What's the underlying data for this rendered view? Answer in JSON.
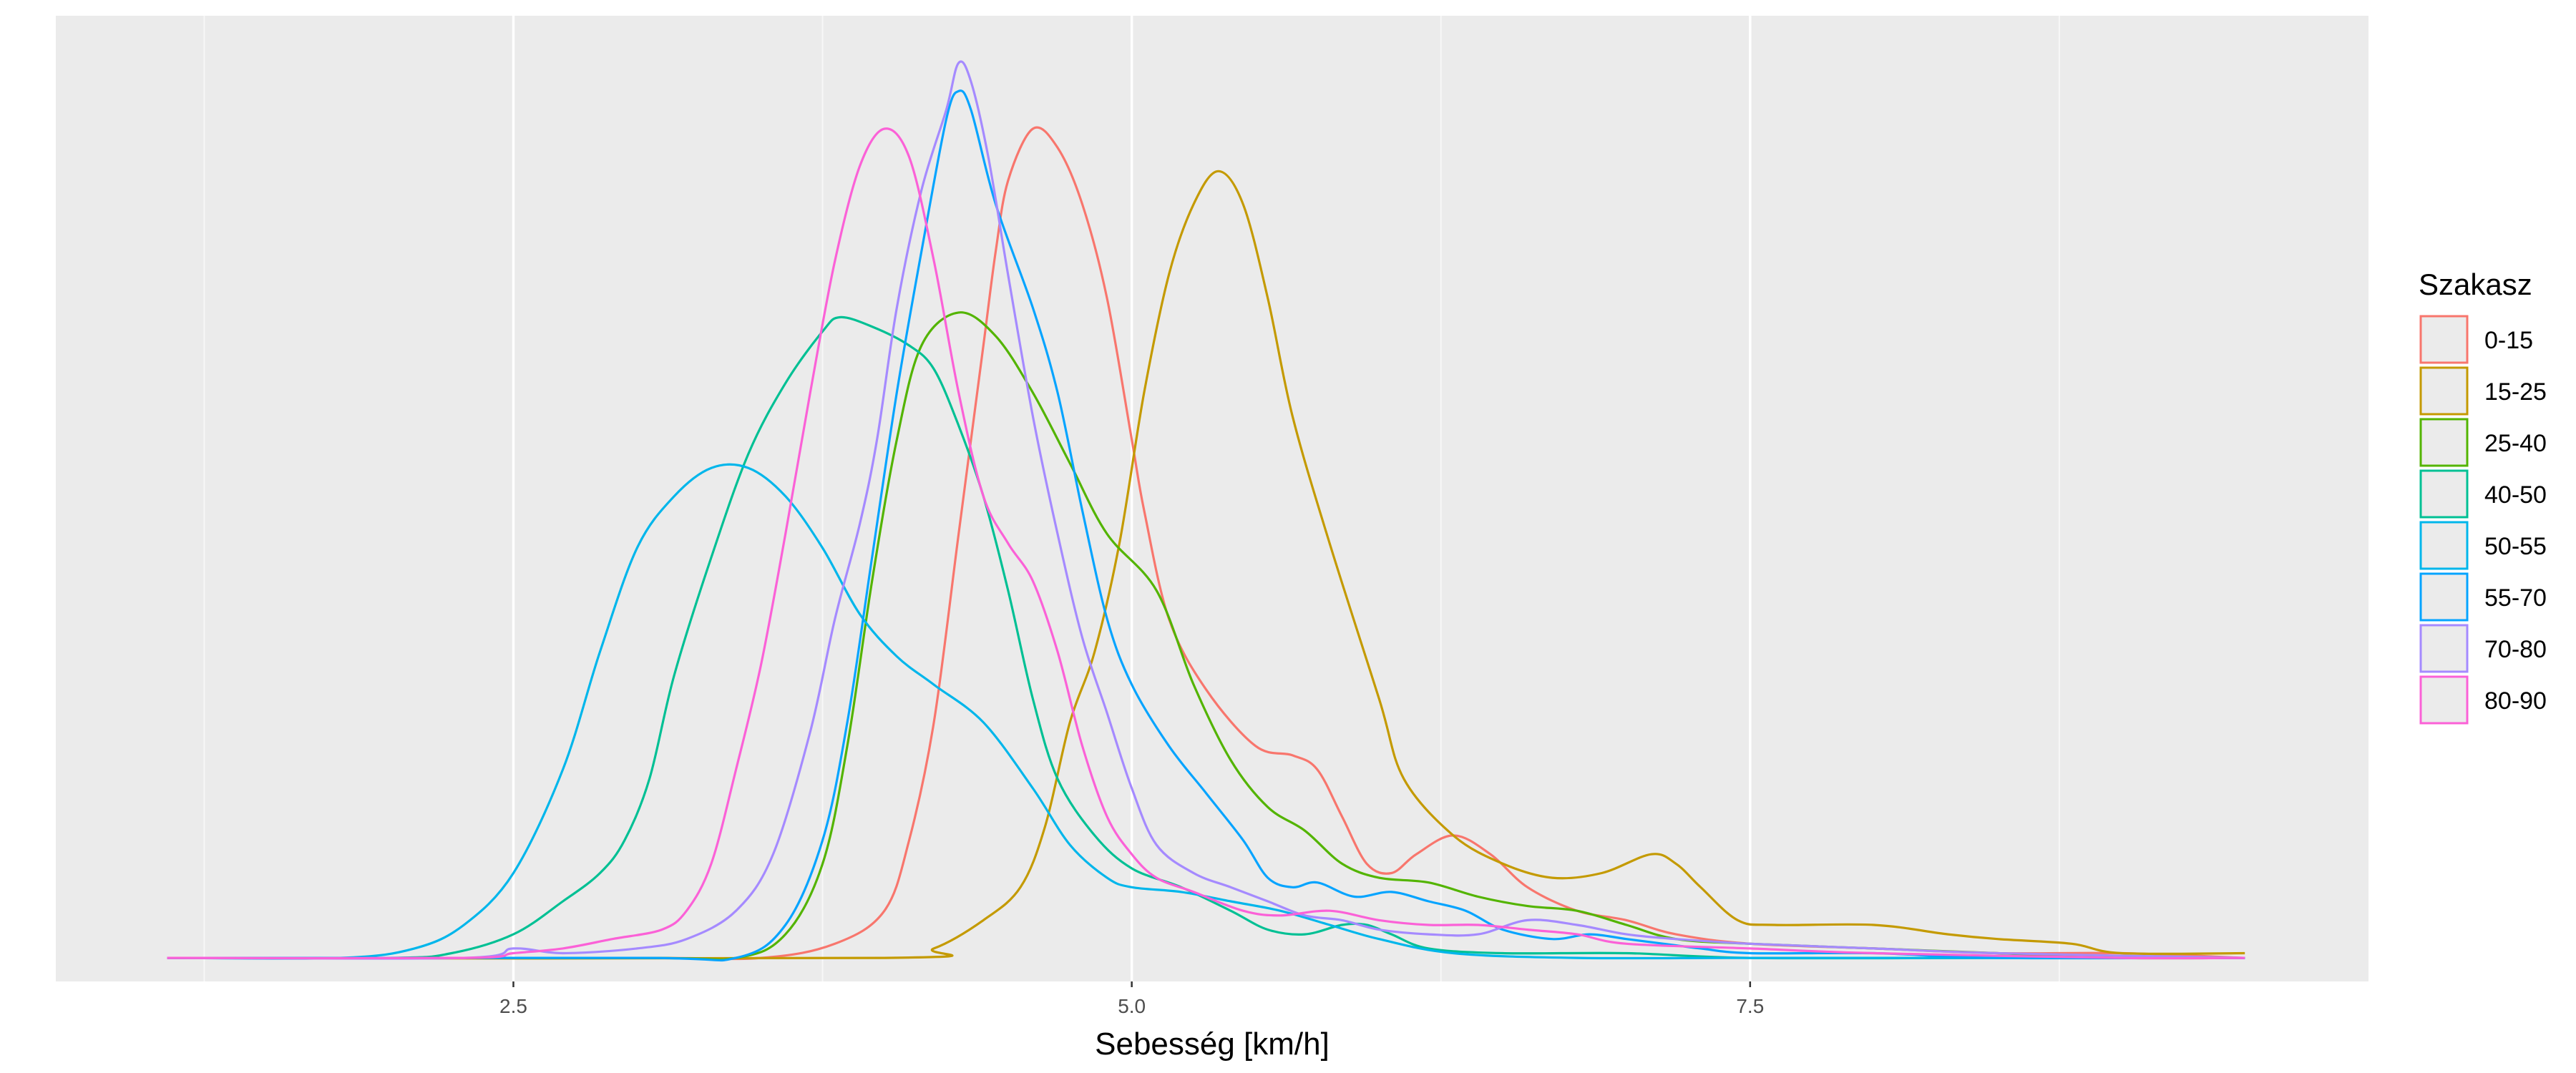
{
  "chart_data": {
    "type": "line",
    "title": "",
    "xlabel": "Sebesség [km/h]",
    "ylabel": "",
    "xlim": [
      0.65,
      10.0
    ],
    "ylim": [
      -0.05,
      2.0
    ],
    "x_ticks": [
      2.5,
      5.0,
      7.5
    ],
    "x_tick_labels": [
      "2.5",
      "5.0",
      "7.5"
    ],
    "x_minor_gridlines": [
      1.25,
      3.75,
      6.25,
      8.75
    ],
    "y_ticks_shown": false,
    "grid": true,
    "legend": {
      "title": "Szakasz",
      "position": "right"
    },
    "series": [
      {
        "name": "0-15",
        "color": "#F8766D",
        "points": [
          [
            1.1,
            0.0
          ],
          [
            3.0,
            0.0
          ],
          [
            3.5,
            0.0
          ],
          [
            3.8,
            0.03
          ],
          [
            4.0,
            0.1
          ],
          [
            4.1,
            0.25
          ],
          [
            4.2,
            0.5
          ],
          [
            4.3,
            0.9
          ],
          [
            4.4,
            1.3
          ],
          [
            4.45,
            1.5
          ],
          [
            4.5,
            1.65
          ],
          [
            4.6,
            1.76
          ],
          [
            4.7,
            1.72
          ],
          [
            4.8,
            1.6
          ],
          [
            4.9,
            1.4
          ],
          [
            5.0,
            1.1
          ],
          [
            5.05,
            0.95
          ],
          [
            5.15,
            0.72
          ],
          [
            5.3,
            0.57
          ],
          [
            5.5,
            0.45
          ],
          [
            5.65,
            0.43
          ],
          [
            5.75,
            0.4
          ],
          [
            5.85,
            0.3
          ],
          [
            5.95,
            0.2
          ],
          [
            6.05,
            0.18
          ],
          [
            6.15,
            0.22
          ],
          [
            6.3,
            0.26
          ],
          [
            6.45,
            0.22
          ],
          [
            6.6,
            0.15
          ],
          [
            6.8,
            0.1
          ],
          [
            7.0,
            0.08
          ],
          [
            7.2,
            0.05
          ],
          [
            7.5,
            0.03
          ],
          [
            8.0,
            0.02
          ],
          [
            8.5,
            0.01
          ],
          [
            9.0,
            0.01
          ],
          [
            9.5,
            0.0
          ]
        ]
      },
      {
        "name": "15-25",
        "color": "#C49A00",
        "points": [
          [
            1.1,
            0.0
          ],
          [
            4.0,
            0.0
          ],
          [
            4.2,
            0.02
          ],
          [
            4.4,
            0.08
          ],
          [
            4.55,
            0.15
          ],
          [
            4.65,
            0.28
          ],
          [
            4.75,
            0.5
          ],
          [
            4.85,
            0.65
          ],
          [
            4.95,
            0.88
          ],
          [
            5.05,
            1.2
          ],
          [
            5.15,
            1.45
          ],
          [
            5.25,
            1.6
          ],
          [
            5.35,
            1.67
          ],
          [
            5.45,
            1.6
          ],
          [
            5.55,
            1.4
          ],
          [
            5.65,
            1.15
          ],
          [
            5.8,
            0.88
          ],
          [
            6.0,
            0.55
          ],
          [
            6.1,
            0.38
          ],
          [
            6.3,
            0.26
          ],
          [
            6.5,
            0.2
          ],
          [
            6.7,
            0.17
          ],
          [
            6.9,
            0.18
          ],
          [
            7.1,
            0.22
          ],
          [
            7.2,
            0.2
          ],
          [
            7.3,
            0.15
          ],
          [
            7.45,
            0.08
          ],
          [
            7.6,
            0.07
          ],
          [
            8.0,
            0.07
          ],
          [
            8.3,
            0.05
          ],
          [
            8.5,
            0.04
          ],
          [
            8.8,
            0.03
          ],
          [
            9.0,
            0.01
          ],
          [
            9.5,
            0.01
          ]
        ]
      },
      {
        "name": "25-40",
        "color": "#53B400",
        "points": [
          [
            1.1,
            0.0
          ],
          [
            3.0,
            0.0
          ],
          [
            3.4,
            0.0
          ],
          [
            3.6,
            0.05
          ],
          [
            3.75,
            0.2
          ],
          [
            3.85,
            0.45
          ],
          [
            3.95,
            0.8
          ],
          [
            4.05,
            1.1
          ],
          [
            4.15,
            1.3
          ],
          [
            4.3,
            1.37
          ],
          [
            4.45,
            1.32
          ],
          [
            4.6,
            1.2
          ],
          [
            4.75,
            1.05
          ],
          [
            4.9,
            0.9
          ],
          [
            5.1,
            0.78
          ],
          [
            5.25,
            0.58
          ],
          [
            5.4,
            0.42
          ],
          [
            5.55,
            0.32
          ],
          [
            5.7,
            0.27
          ],
          [
            5.85,
            0.2
          ],
          [
            6.0,
            0.17
          ],
          [
            6.2,
            0.16
          ],
          [
            6.4,
            0.13
          ],
          [
            6.6,
            0.11
          ],
          [
            6.8,
            0.1
          ],
          [
            7.0,
            0.07
          ],
          [
            7.2,
            0.04
          ],
          [
            7.5,
            0.03
          ],
          [
            8.0,
            0.02
          ],
          [
            8.5,
            0.01
          ],
          [
            9.0,
            0.0
          ],
          [
            9.5,
            0.0
          ]
        ]
      },
      {
        "name": "40-50",
        "color": "#00C094",
        "points": [
          [
            1.1,
            0.0
          ],
          [
            2.0,
            0.0
          ],
          [
            2.25,
            0.01
          ],
          [
            2.5,
            0.05
          ],
          [
            2.7,
            0.12
          ],
          [
            2.85,
            0.18
          ],
          [
            2.95,
            0.25
          ],
          [
            3.05,
            0.38
          ],
          [
            3.15,
            0.6
          ],
          [
            3.3,
            0.85
          ],
          [
            3.45,
            1.07
          ],
          [
            3.6,
            1.22
          ],
          [
            3.75,
            1.33
          ],
          [
            3.82,
            1.36
          ],
          [
            3.95,
            1.34
          ],
          [
            4.1,
            1.3
          ],
          [
            4.2,
            1.25
          ],
          [
            4.3,
            1.13
          ],
          [
            4.4,
            0.98
          ],
          [
            4.5,
            0.78
          ],
          [
            4.6,
            0.55
          ],
          [
            4.7,
            0.38
          ],
          [
            4.85,
            0.26
          ],
          [
            5.0,
            0.19
          ],
          [
            5.2,
            0.15
          ],
          [
            5.4,
            0.1
          ],
          [
            5.55,
            0.06
          ],
          [
            5.7,
            0.05
          ],
          [
            5.85,
            0.07
          ],
          [
            5.95,
            0.07
          ],
          [
            6.05,
            0.05
          ],
          [
            6.2,
            0.02
          ],
          [
            6.5,
            0.01
          ],
          [
            7.0,
            0.01
          ],
          [
            7.5,
            0.0
          ],
          [
            8.5,
            0.0
          ],
          [
            9.5,
            0.0
          ]
        ]
      },
      {
        "name": "50-55",
        "color": "#00B6EB",
        "points": [
          [
            1.1,
            0.0
          ],
          [
            1.8,
            0.0
          ],
          [
            2.1,
            0.02
          ],
          [
            2.3,
            0.07
          ],
          [
            2.5,
            0.18
          ],
          [
            2.7,
            0.4
          ],
          [
            2.85,
            0.65
          ],
          [
            3.0,
            0.87
          ],
          [
            3.15,
            0.98
          ],
          [
            3.3,
            1.04
          ],
          [
            3.45,
            1.04
          ],
          [
            3.6,
            0.98
          ],
          [
            3.75,
            0.87
          ],
          [
            3.9,
            0.73
          ],
          [
            4.05,
            0.64
          ],
          [
            4.2,
            0.58
          ],
          [
            4.4,
            0.5
          ],
          [
            4.6,
            0.36
          ],
          [
            4.75,
            0.24
          ],
          [
            4.9,
            0.17
          ],
          [
            5.0,
            0.15
          ],
          [
            5.2,
            0.14
          ],
          [
            5.4,
            0.12
          ],
          [
            5.6,
            0.1
          ],
          [
            5.8,
            0.07
          ],
          [
            6.0,
            0.04
          ],
          [
            6.3,
            0.01
          ],
          [
            6.8,
            0.0
          ],
          [
            7.5,
            0.0
          ],
          [
            8.5,
            0.0
          ],
          [
            9.5,
            0.0
          ]
        ]
      },
      {
        "name": "55-70",
        "color": "#06A4FF",
        "points": [
          [
            1.1,
            0.0
          ],
          [
            3.0,
            0.0
          ],
          [
            3.4,
            0.0
          ],
          [
            3.6,
            0.07
          ],
          [
            3.75,
            0.25
          ],
          [
            3.85,
            0.5
          ],
          [
            3.95,
            0.85
          ],
          [
            4.05,
            1.2
          ],
          [
            4.15,
            1.5
          ],
          [
            4.25,
            1.78
          ],
          [
            4.3,
            1.84
          ],
          [
            4.35,
            1.8
          ],
          [
            4.45,
            1.6
          ],
          [
            4.6,
            1.38
          ],
          [
            4.7,
            1.2
          ],
          [
            4.8,
            0.95
          ],
          [
            4.9,
            0.72
          ],
          [
            5.0,
            0.58
          ],
          [
            5.15,
            0.45
          ],
          [
            5.3,
            0.35
          ],
          [
            5.45,
            0.25
          ],
          [
            5.55,
            0.17
          ],
          [
            5.65,
            0.15
          ],
          [
            5.75,
            0.16
          ],
          [
            5.9,
            0.13
          ],
          [
            6.05,
            0.14
          ],
          [
            6.2,
            0.12
          ],
          [
            6.35,
            0.1
          ],
          [
            6.5,
            0.06
          ],
          [
            6.7,
            0.04
          ],
          [
            6.85,
            0.05
          ],
          [
            7.0,
            0.04
          ],
          [
            7.15,
            0.03
          ],
          [
            7.3,
            0.02
          ],
          [
            7.5,
            0.01
          ],
          [
            8.0,
            0.01
          ],
          [
            8.5,
            0.0
          ],
          [
            9.5,
            0.0
          ]
        ]
      },
      {
        "name": "70-80",
        "color": "#A58AFF",
        "points": [
          [
            1.1,
            0.0
          ],
          [
            2.3,
            0.0
          ],
          [
            2.5,
            0.02
          ],
          [
            2.7,
            0.01
          ],
          [
            3.0,
            0.02
          ],
          [
            3.2,
            0.04
          ],
          [
            3.4,
            0.1
          ],
          [
            3.55,
            0.22
          ],
          [
            3.7,
            0.48
          ],
          [
            3.8,
            0.72
          ],
          [
            3.9,
            0.92
          ],
          [
            3.97,
            1.1
          ],
          [
            4.05,
            1.38
          ],
          [
            4.15,
            1.63
          ],
          [
            4.25,
            1.8
          ],
          [
            4.3,
            1.9
          ],
          [
            4.35,
            1.86
          ],
          [
            4.42,
            1.7
          ],
          [
            4.5,
            1.45
          ],
          [
            4.6,
            1.15
          ],
          [
            4.7,
            0.9
          ],
          [
            4.8,
            0.68
          ],
          [
            4.9,
            0.52
          ],
          [
            5.0,
            0.36
          ],
          [
            5.1,
            0.24
          ],
          [
            5.25,
            0.18
          ],
          [
            5.4,
            0.15
          ],
          [
            5.55,
            0.12
          ],
          [
            5.7,
            0.09
          ],
          [
            5.85,
            0.08
          ],
          [
            6.0,
            0.06
          ],
          [
            6.2,
            0.05
          ],
          [
            6.4,
            0.05
          ],
          [
            6.6,
            0.08
          ],
          [
            6.8,
            0.07
          ],
          [
            7.0,
            0.05
          ],
          [
            7.2,
            0.04
          ],
          [
            7.5,
            0.03
          ],
          [
            8.0,
            0.02
          ],
          [
            8.5,
            0.01
          ],
          [
            9.5,
            0.0
          ]
        ]
      },
      {
        "name": "80-90",
        "color": "#FB61D7",
        "points": [
          [
            1.1,
            0.0
          ],
          [
            2.3,
            0.0
          ],
          [
            2.5,
            0.01
          ],
          [
            2.7,
            0.02
          ],
          [
            2.9,
            0.04
          ],
          [
            3.1,
            0.06
          ],
          [
            3.2,
            0.1
          ],
          [
            3.3,
            0.2
          ],
          [
            3.4,
            0.4
          ],
          [
            3.5,
            0.62
          ],
          [
            3.6,
            0.9
          ],
          [
            3.7,
            1.2
          ],
          [
            3.8,
            1.48
          ],
          [
            3.9,
            1.68
          ],
          [
            4.0,
            1.76
          ],
          [
            4.1,
            1.7
          ],
          [
            4.2,
            1.48
          ],
          [
            4.3,
            1.2
          ],
          [
            4.4,
            0.98
          ],
          [
            4.5,
            0.88
          ],
          [
            4.6,
            0.8
          ],
          [
            4.7,
            0.65
          ],
          [
            4.8,
            0.45
          ],
          [
            4.9,
            0.3
          ],
          [
            5.0,
            0.22
          ],
          [
            5.1,
            0.17
          ],
          [
            5.25,
            0.14
          ],
          [
            5.45,
            0.1
          ],
          [
            5.6,
            0.09
          ],
          [
            5.8,
            0.1
          ],
          [
            6.0,
            0.08
          ],
          [
            6.2,
            0.07
          ],
          [
            6.4,
            0.07
          ],
          [
            6.6,
            0.06
          ],
          [
            6.8,
            0.05
          ],
          [
            7.0,
            0.03
          ],
          [
            7.5,
            0.02
          ],
          [
            8.0,
            0.01
          ],
          [
            9.0,
            0.0
          ],
          [
            9.5,
            0.0
          ]
        ]
      }
    ]
  }
}
